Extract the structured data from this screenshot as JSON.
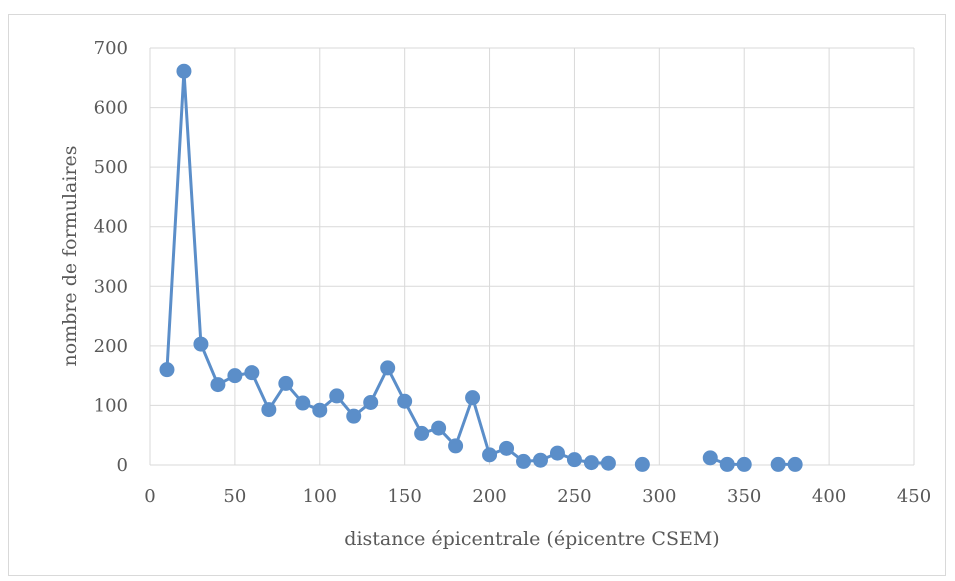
{
  "chart_data": {
    "type": "scatter",
    "title": "",
    "xlabel": "distance épicentrale (épicentre CSEM)",
    "ylabel": "nombre de formulaires",
    "xlim": [
      0,
      450
    ],
    "ylim": [
      0,
      700
    ],
    "x_ticks": [
      0,
      50,
      100,
      150,
      200,
      250,
      300,
      350,
      400,
      450
    ],
    "y_ticks": [
      0,
      100,
      200,
      300,
      400,
      500,
      600,
      700
    ],
    "grid": true,
    "legend": "none",
    "series_color": "#5b8ec9",
    "series": [
      {
        "name": "",
        "segments": [
          [
            {
              "x": 10,
              "y": 160
            },
            {
              "x": 20,
              "y": 661
            },
            {
              "x": 30,
              "y": 203
            },
            {
              "x": 40,
              "y": 135
            },
            {
              "x": 50,
              "y": 150
            },
            {
              "x": 60,
              "y": 155
            },
            {
              "x": 70,
              "y": 93
            },
            {
              "x": 80,
              "y": 137
            },
            {
              "x": 90,
              "y": 104
            },
            {
              "x": 100,
              "y": 92
            },
            {
              "x": 110,
              "y": 116
            },
            {
              "x": 120,
              "y": 82
            },
            {
              "x": 130,
              "y": 105
            },
            {
              "x": 140,
              "y": 163
            },
            {
              "x": 150,
              "y": 107
            },
            {
              "x": 160,
              "y": 53
            },
            {
              "x": 170,
              "y": 62
            },
            {
              "x": 180,
              "y": 32
            },
            {
              "x": 190,
              "y": 113
            },
            {
              "x": 200,
              "y": 17
            },
            {
              "x": 210,
              "y": 28
            },
            {
              "x": 220,
              "y": 6
            },
            {
              "x": 230,
              "y": 8
            },
            {
              "x": 240,
              "y": 20
            },
            {
              "x": 250,
              "y": 9
            },
            {
              "x": 260,
              "y": 4
            },
            {
              "x": 270,
              "y": 3
            }
          ],
          [
            {
              "x": 290,
              "y": 1
            }
          ],
          [
            {
              "x": 330,
              "y": 12
            },
            {
              "x": 340,
              "y": 1
            },
            {
              "x": 350,
              "y": 1
            }
          ],
          [
            {
              "x": 370,
              "y": 1
            },
            {
              "x": 380,
              "y": 1
            }
          ]
        ]
      }
    ]
  }
}
